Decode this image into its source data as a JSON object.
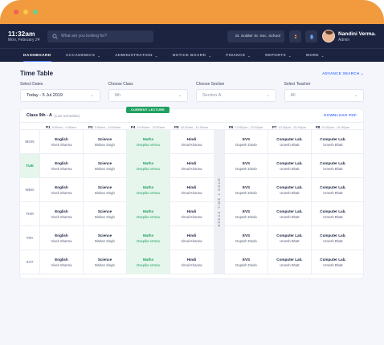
{
  "clock": {
    "time": "11:32am",
    "date": "Mon, February 24"
  },
  "search": {
    "placeholder": "What are you looking for?"
  },
  "school": {
    "label": "St. Soldier Sr. Sec. School"
  },
  "user": {
    "name": "Nandini Verma",
    "role": "Admin"
  },
  "nav": [
    {
      "label": "DASHBOARD",
      "chev": ""
    },
    {
      "label": "ACCADEMICS",
      "chev": "⌄"
    },
    {
      "label": "ADMINISTRATION",
      "chev": "⌄"
    },
    {
      "label": "NOTICE BOARD",
      "chev": "⌄"
    },
    {
      "label": "FINANCE",
      "chev": "⌄"
    },
    {
      "label": "REPORTS",
      "chev": "⌄"
    },
    {
      "label": "MORE",
      "chev": "⌄"
    }
  ],
  "page": {
    "title": "Time Table",
    "advanced": "ADVANCE SEARCH ⌄"
  },
  "filters": [
    {
      "label": "Select Dates",
      "value": "Today - 5 Jul 2019"
    },
    {
      "label": "Choose Class",
      "value": "9th"
    },
    {
      "label": "Choose Section",
      "value": "Section A"
    },
    {
      "label": "Select Teacher",
      "value": "All"
    }
  ],
  "card": {
    "class_name": "Class 9th - A",
    "sub": "(Live Schedule)",
    "download": "DOWNLOAD PDF",
    "current": "CURRENT LECTURE",
    "break_label": "BREAK TIME 1 HOUR"
  },
  "periods": [
    {
      "p": "P1",
      "t": "9:00am - 9:30am"
    },
    {
      "p": "P2",
      "t": "9:30am - 10:00am"
    },
    {
      "p": "P4",
      "t": "10:00am - 10:30am"
    },
    {
      "p": "P5",
      "t": "10:30am - 11:00am"
    },
    {
      "p": "P6",
      "t": "12:00pm - 12:30pm"
    },
    {
      "p": "P7",
      "t": "12:30pm - 01:00pm"
    },
    {
      "p": "P8",
      "t": "01:00pm - 01:30pm"
    }
  ],
  "days": [
    {
      "day": "MON"
    },
    {
      "day": "TUE"
    },
    {
      "day": "WED"
    },
    {
      "day": "THR"
    },
    {
      "day": "FRI"
    },
    {
      "day": "SAT"
    }
  ],
  "slots": [
    {
      "sub": "English",
      "tch": "Vivek Sharma"
    },
    {
      "sub": "Science",
      "tch": "Bishan Singh"
    },
    {
      "sub": "Maths",
      "tch": "Deepika Verma"
    },
    {
      "sub": "Hindi",
      "tch": "Vimal Khanna"
    },
    {
      "sub": "EVS",
      "tch": "Dupesh Dindo"
    },
    {
      "sub": "Computer Lab.",
      "tch": "Umesh Bhatt"
    },
    {
      "sub": "Computer Lab.",
      "tch": "Umesh Bhatt"
    }
  ],
  "colors": {
    "accent": "#4f7cff",
    "current": "#1fa060",
    "topbar": "#1b2340",
    "frame": "#f19a3e"
  }
}
